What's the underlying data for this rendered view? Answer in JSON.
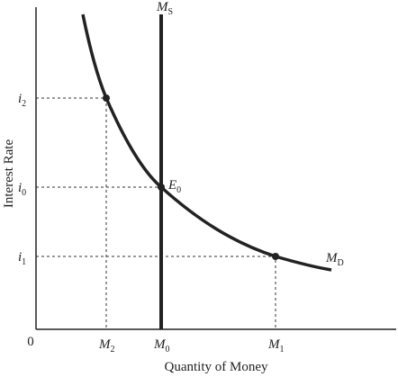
{
  "axes": {
    "y_label": "Interest Rate",
    "x_label": "Quantity of Money",
    "origin": "0"
  },
  "y_levels": [
    {
      "base": "i",
      "sub": "2"
    },
    {
      "base": "i",
      "sub": "0"
    },
    {
      "base": "i",
      "sub": "1"
    }
  ],
  "x_levels": [
    {
      "base": "M",
      "sub": "2"
    },
    {
      "base": "M",
      "sub": "0"
    },
    {
      "base": "M",
      "sub": "1"
    }
  ],
  "curves": {
    "supply": {
      "base": "M",
      "sub": "S"
    },
    "demand": {
      "base": "M",
      "sub": "D"
    }
  },
  "equilibrium": {
    "base": "E",
    "sub": "0"
  }
}
